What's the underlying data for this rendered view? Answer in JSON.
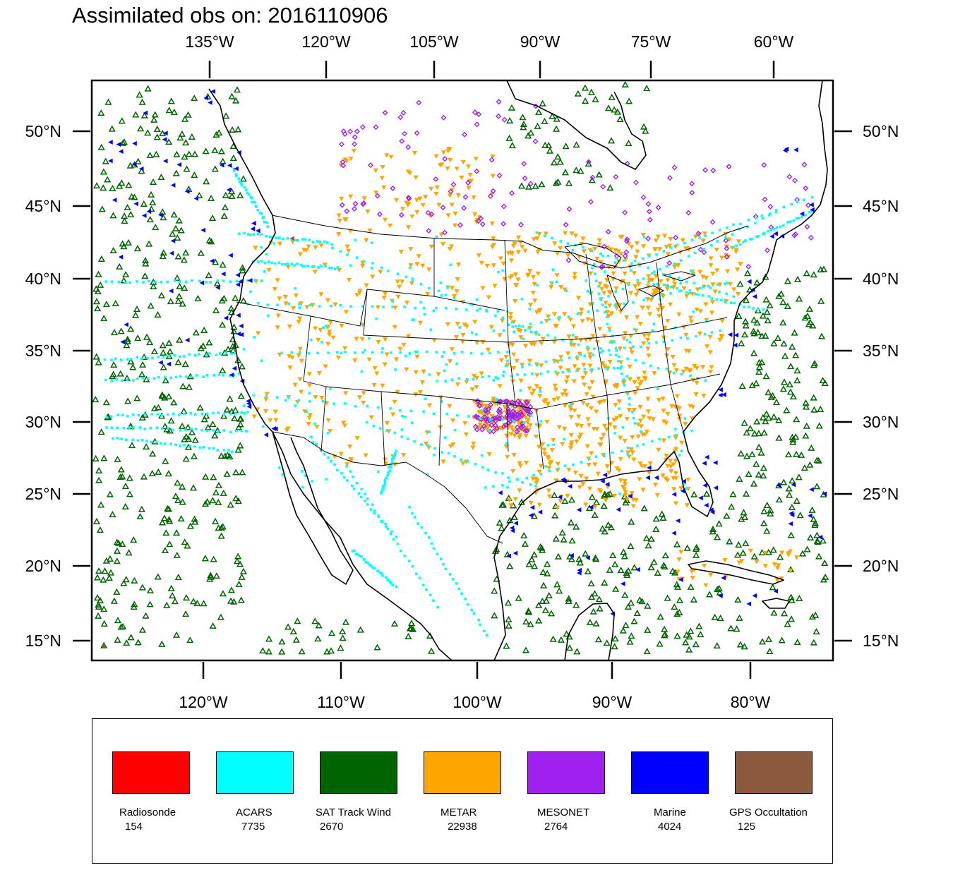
{
  "title": "Assimilated obs on: 2016110906",
  "map": {
    "top_axis_labels": [
      "135°W",
      "120°W",
      "105°W",
      "90°W",
      "75°W",
      "60°W"
    ],
    "bottom_axis_labels": [
      "120°W",
      "110°W",
      "100°W",
      "90°W",
      "80°W"
    ],
    "left_axis_labels": [
      "50°N",
      "45°N",
      "40°N",
      "35°N",
      "30°N",
      "25°N",
      "20°N",
      "15°N"
    ],
    "right_axis_labels": [
      "50°N",
      "45°N",
      "40°N",
      "35°N",
      "30°N",
      "25°N",
      "20°N",
      "15°N"
    ],
    "extent": {
      "lon_min": -128.2,
      "lon_max": -74.3,
      "lat_min": 13.6,
      "lat_max": 53.6
    },
    "marker_shapes": {
      "ACARS": "dot",
      "SAT Track Wind": "triangle-up",
      "METAR": "triangle-down",
      "MESONET": "diamond",
      "Marine": "triangle-left",
      "GPS Occultation": "triangle-left"
    }
  },
  "legend": [
    {
      "name": "Radiosonde",
      "count": "154",
      "color": "#ff0000"
    },
    {
      "name": "ACARS",
      "count": "7735",
      "color": "#00ffff"
    },
    {
      "name": "SAT Track Wind",
      "count": "2670",
      "color": "#006400"
    },
    {
      "name": "METAR",
      "count": "22938",
      "color": "#ffa500"
    },
    {
      "name": "MESONET",
      "count": "2764",
      "color": "#a020f0"
    },
    {
      "name": "Marine",
      "count": "4024",
      "color": "#0000ff"
    },
    {
      "name": "GPS Occultation",
      "count": "125",
      "color": "#8b5a3c"
    }
  ]
}
